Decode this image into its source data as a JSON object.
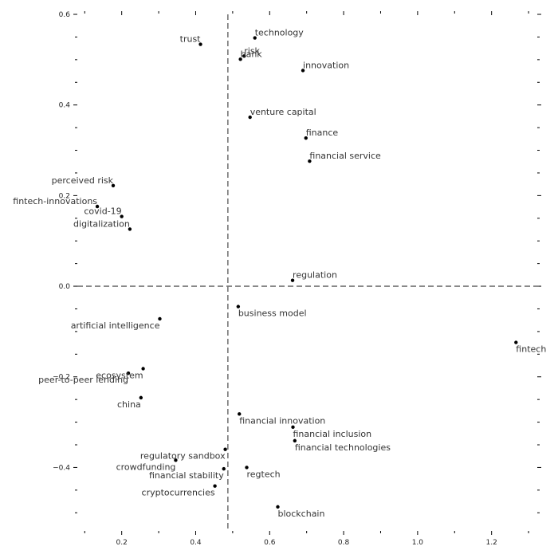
{
  "chart_data": {
    "type": "scatter",
    "title": "",
    "xlabel": "",
    "ylabel": "",
    "xlim": [
      0.08,
      1.33
    ],
    "ylim": [
      -0.54,
      0.6
    ],
    "x_ticks": [
      0.2,
      0.4,
      0.6,
      0.8,
      1.0,
      1.2
    ],
    "x_tick_labels": [
      "0.2",
      "0.4",
      "0.6",
      "0.8",
      "1.0",
      "1.2"
    ],
    "y_ticks": [
      -0.4,
      -0.2,
      0.0,
      0.2,
      0.4,
      0.6
    ],
    "y_tick_labels": [
      "−0.4",
      "−0.2",
      "0.0",
      "0.2",
      "0.4",
      "0.6"
    ],
    "grid": false,
    "reference_lines": {
      "x": 0.487,
      "y": 0.0,
      "style": "dashed"
    },
    "points": [
      {
        "label": "trust",
        "x": 0.413,
        "y": 0.534,
        "anchor": "end",
        "pos": "above"
      },
      {
        "label": "technology",
        "x": 0.56,
        "y": 0.548,
        "anchor": "start",
        "pos": "above"
      },
      {
        "label": "risk",
        "x": 0.531,
        "y": 0.508,
        "anchor": "start",
        "pos": "above"
      },
      {
        "label": "bank",
        "x": 0.521,
        "y": 0.501,
        "anchor": "start",
        "pos": "above"
      },
      {
        "label": "innovation",
        "x": 0.69,
        "y": 0.476,
        "anchor": "start",
        "pos": "above"
      },
      {
        "label": "venture capital",
        "x": 0.547,
        "y": 0.373,
        "anchor": "start",
        "pos": "above"
      },
      {
        "label": "finance",
        "x": 0.698,
        "y": 0.327,
        "anchor": "start",
        "pos": "above"
      },
      {
        "label": "financial service",
        "x": 0.708,
        "y": 0.276,
        "anchor": "start",
        "pos": "above"
      },
      {
        "label": "perceived risk",
        "x": 0.177,
        "y": 0.222,
        "anchor": "end",
        "pos": "above"
      },
      {
        "label": "fintech-innovations",
        "x": 0.134,
        "y": 0.176,
        "anchor": "end",
        "pos": "above"
      },
      {
        "label": "covid-19",
        "x": 0.2,
        "y": 0.154,
        "anchor": "end",
        "pos": "above"
      },
      {
        "label": "digitalization",
        "x": 0.222,
        "y": 0.126,
        "anchor": "end",
        "pos": "above"
      },
      {
        "label": "regulation",
        "x": 0.662,
        "y": 0.013,
        "anchor": "start",
        "pos": "above"
      },
      {
        "label": "business model",
        "x": 0.515,
        "y": -0.045,
        "anchor": "start",
        "pos": "below"
      },
      {
        "label": "artificial intelligence",
        "x": 0.303,
        "y": -0.072,
        "anchor": "end",
        "pos": "below"
      },
      {
        "label": "fintech",
        "x": 1.266,
        "y": -0.124,
        "anchor": "start",
        "pos": "below"
      },
      {
        "label": "ecosystem",
        "x": 0.258,
        "y": -0.182,
        "anchor": "end",
        "pos": "below"
      },
      {
        "label": "peer-to-peer lending",
        "x": 0.218,
        "y": -0.192,
        "anchor": "end",
        "pos": "below"
      },
      {
        "label": "china",
        "x": 0.252,
        "y": -0.246,
        "anchor": "end",
        "pos": "below"
      },
      {
        "label": "financial innovation",
        "x": 0.518,
        "y": -0.282,
        "anchor": "start",
        "pos": "below"
      },
      {
        "label": "financial inclusion",
        "x": 0.663,
        "y": -0.311,
        "anchor": "start",
        "pos": "below"
      },
      {
        "label": "financial technologies",
        "x": 0.668,
        "y": -0.341,
        "anchor": "start",
        "pos": "below"
      },
      {
        "label": "regulatory sandbox",
        "x": 0.48,
        "y": -0.36,
        "anchor": "end",
        "pos": "below"
      },
      {
        "label": "crowdfunding",
        "x": 0.346,
        "y": -0.384,
        "anchor": "end",
        "pos": "below"
      },
      {
        "label": "financial stability",
        "x": 0.476,
        "y": -0.403,
        "anchor": "end",
        "pos": "below"
      },
      {
        "label": "regtech",
        "x": 0.538,
        "y": -0.4,
        "anchor": "start",
        "pos": "below"
      },
      {
        "label": "cryptocurrencies",
        "x": 0.452,
        "y": -0.441,
        "anchor": "end",
        "pos": "below"
      },
      {
        "label": "blockchain",
        "x": 0.622,
        "y": -0.487,
        "anchor": "start",
        "pos": "below"
      }
    ]
  }
}
